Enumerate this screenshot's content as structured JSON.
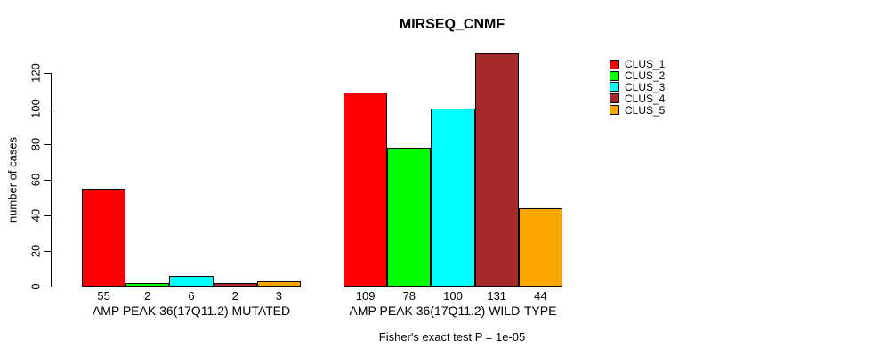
{
  "chart_data": {
    "type": "bar",
    "title": "MIRSEQ_CNMF",
    "ylabel": "number of cases",
    "footnote": "Fisher's exact test P = 1e-05",
    "yticks": [
      0,
      20,
      40,
      60,
      80,
      100,
      120
    ],
    "ylim": [
      0,
      131
    ],
    "grid": false,
    "legend_position": "right",
    "legend": [
      {
        "label": "CLUS_1",
        "color": "#FF0000"
      },
      {
        "label": "CLUS_2",
        "color": "#00FF00"
      },
      {
        "label": "CLUS_3",
        "color": "#00FFFF"
      },
      {
        "label": "CLUS_4",
        "color": "#A52A2A"
      },
      {
        "label": "CLUS_5",
        "color": "#FFA500"
      }
    ],
    "series_colors": [
      "#FF0000",
      "#00FF00",
      "#00FFFF",
      "#A52A2A",
      "#FFA500"
    ],
    "groups": [
      {
        "label": "AMP PEAK 36(17Q11.2) MUTATED",
        "values": [
          55,
          2,
          6,
          2,
          3
        ]
      },
      {
        "label": "AMP PEAK 36(17Q11.2) WILD-TYPE",
        "values": [
          109,
          78,
          100,
          131,
          44
        ]
      }
    ]
  }
}
